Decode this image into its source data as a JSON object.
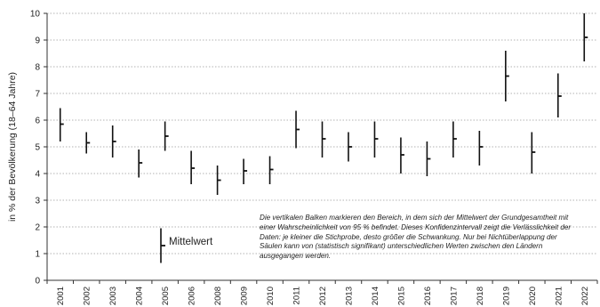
{
  "chart_data": {
    "type": "errorbar",
    "ylabel": "in % der Bevölkerung (18–64 Jahre)",
    "ylim": [
      0,
      10
    ],
    "yticks": [
      0,
      1,
      2,
      3,
      4,
      5,
      6,
      7,
      8,
      9,
      10
    ],
    "grid": "horizontal-dotted",
    "categories": [
      "2001",
      "2002",
      "2003",
      "2004",
      "2005",
      "2006",
      "2008",
      "2009",
      "2010",
      "2011",
      "2012",
      "2013",
      "2014",
      "2015",
      "2016",
      "2017",
      "2018",
      "2019",
      "2020",
      "2021",
      "2022"
    ],
    "points": [
      {
        "mean": 5.85,
        "low": 5.2,
        "high": 6.45
      },
      {
        "mean": 5.15,
        "low": 4.75,
        "high": 5.55
      },
      {
        "mean": 5.2,
        "low": 4.6,
        "high": 5.8
      },
      {
        "mean": 4.4,
        "low": 3.85,
        "high": 4.9
      },
      {
        "mean": 5.4,
        "low": 4.85,
        "high": 5.95
      },
      {
        "mean": 4.2,
        "low": 3.6,
        "high": 4.85
      },
      {
        "mean": 3.75,
        "low": 3.2,
        "high": 4.3
      },
      {
        "mean": 4.1,
        "low": 3.6,
        "high": 4.55
      },
      {
        "mean": 4.15,
        "low": 3.6,
        "high": 4.65
      },
      {
        "mean": 5.65,
        "low": 4.95,
        "high": 6.35
      },
      {
        "mean": 5.3,
        "low": 4.6,
        "high": 5.95
      },
      {
        "mean": 5.0,
        "low": 4.45,
        "high": 5.55
      },
      {
        "mean": 5.3,
        "low": 4.6,
        "high": 5.95
      },
      {
        "mean": 4.7,
        "low": 4.0,
        "high": 5.35
      },
      {
        "mean": 4.55,
        "low": 3.9,
        "high": 5.2
      },
      {
        "mean": 5.3,
        "low": 4.6,
        "high": 5.95
      },
      {
        "mean": 5.0,
        "low": 4.3,
        "high": 5.6
      },
      {
        "mean": 7.65,
        "low": 6.7,
        "high": 8.6
      },
      {
        "mean": 4.8,
        "low": 4.0,
        "high": 5.55
      },
      {
        "mean": 6.9,
        "low": 6.1,
        "high": 7.75
      },
      {
        "mean": 9.1,
        "low": 8.2,
        "high": 10.0
      }
    ],
    "legend": {
      "label": "Mittelwert",
      "mean": 1.3,
      "low": 0.65,
      "high": 1.95
    },
    "annotation": "Die vertikalen Balken markieren den Bereich, in dem sich der Mittelwert der Grundgesamtheit mit einer Wahrscheinlichkeit von 95 % befindet. Dieses Konfidenzintervall zeigt die Verlässlichkeit der Daten: je kleiner die Stichprobe, desto größer die Schwankung. Nur bei Nichtüberlappung der Säulen kann von (statistisch signifikant) unterschiedlichen Werten zwischen den Ländern ausgegangen werden."
  }
}
